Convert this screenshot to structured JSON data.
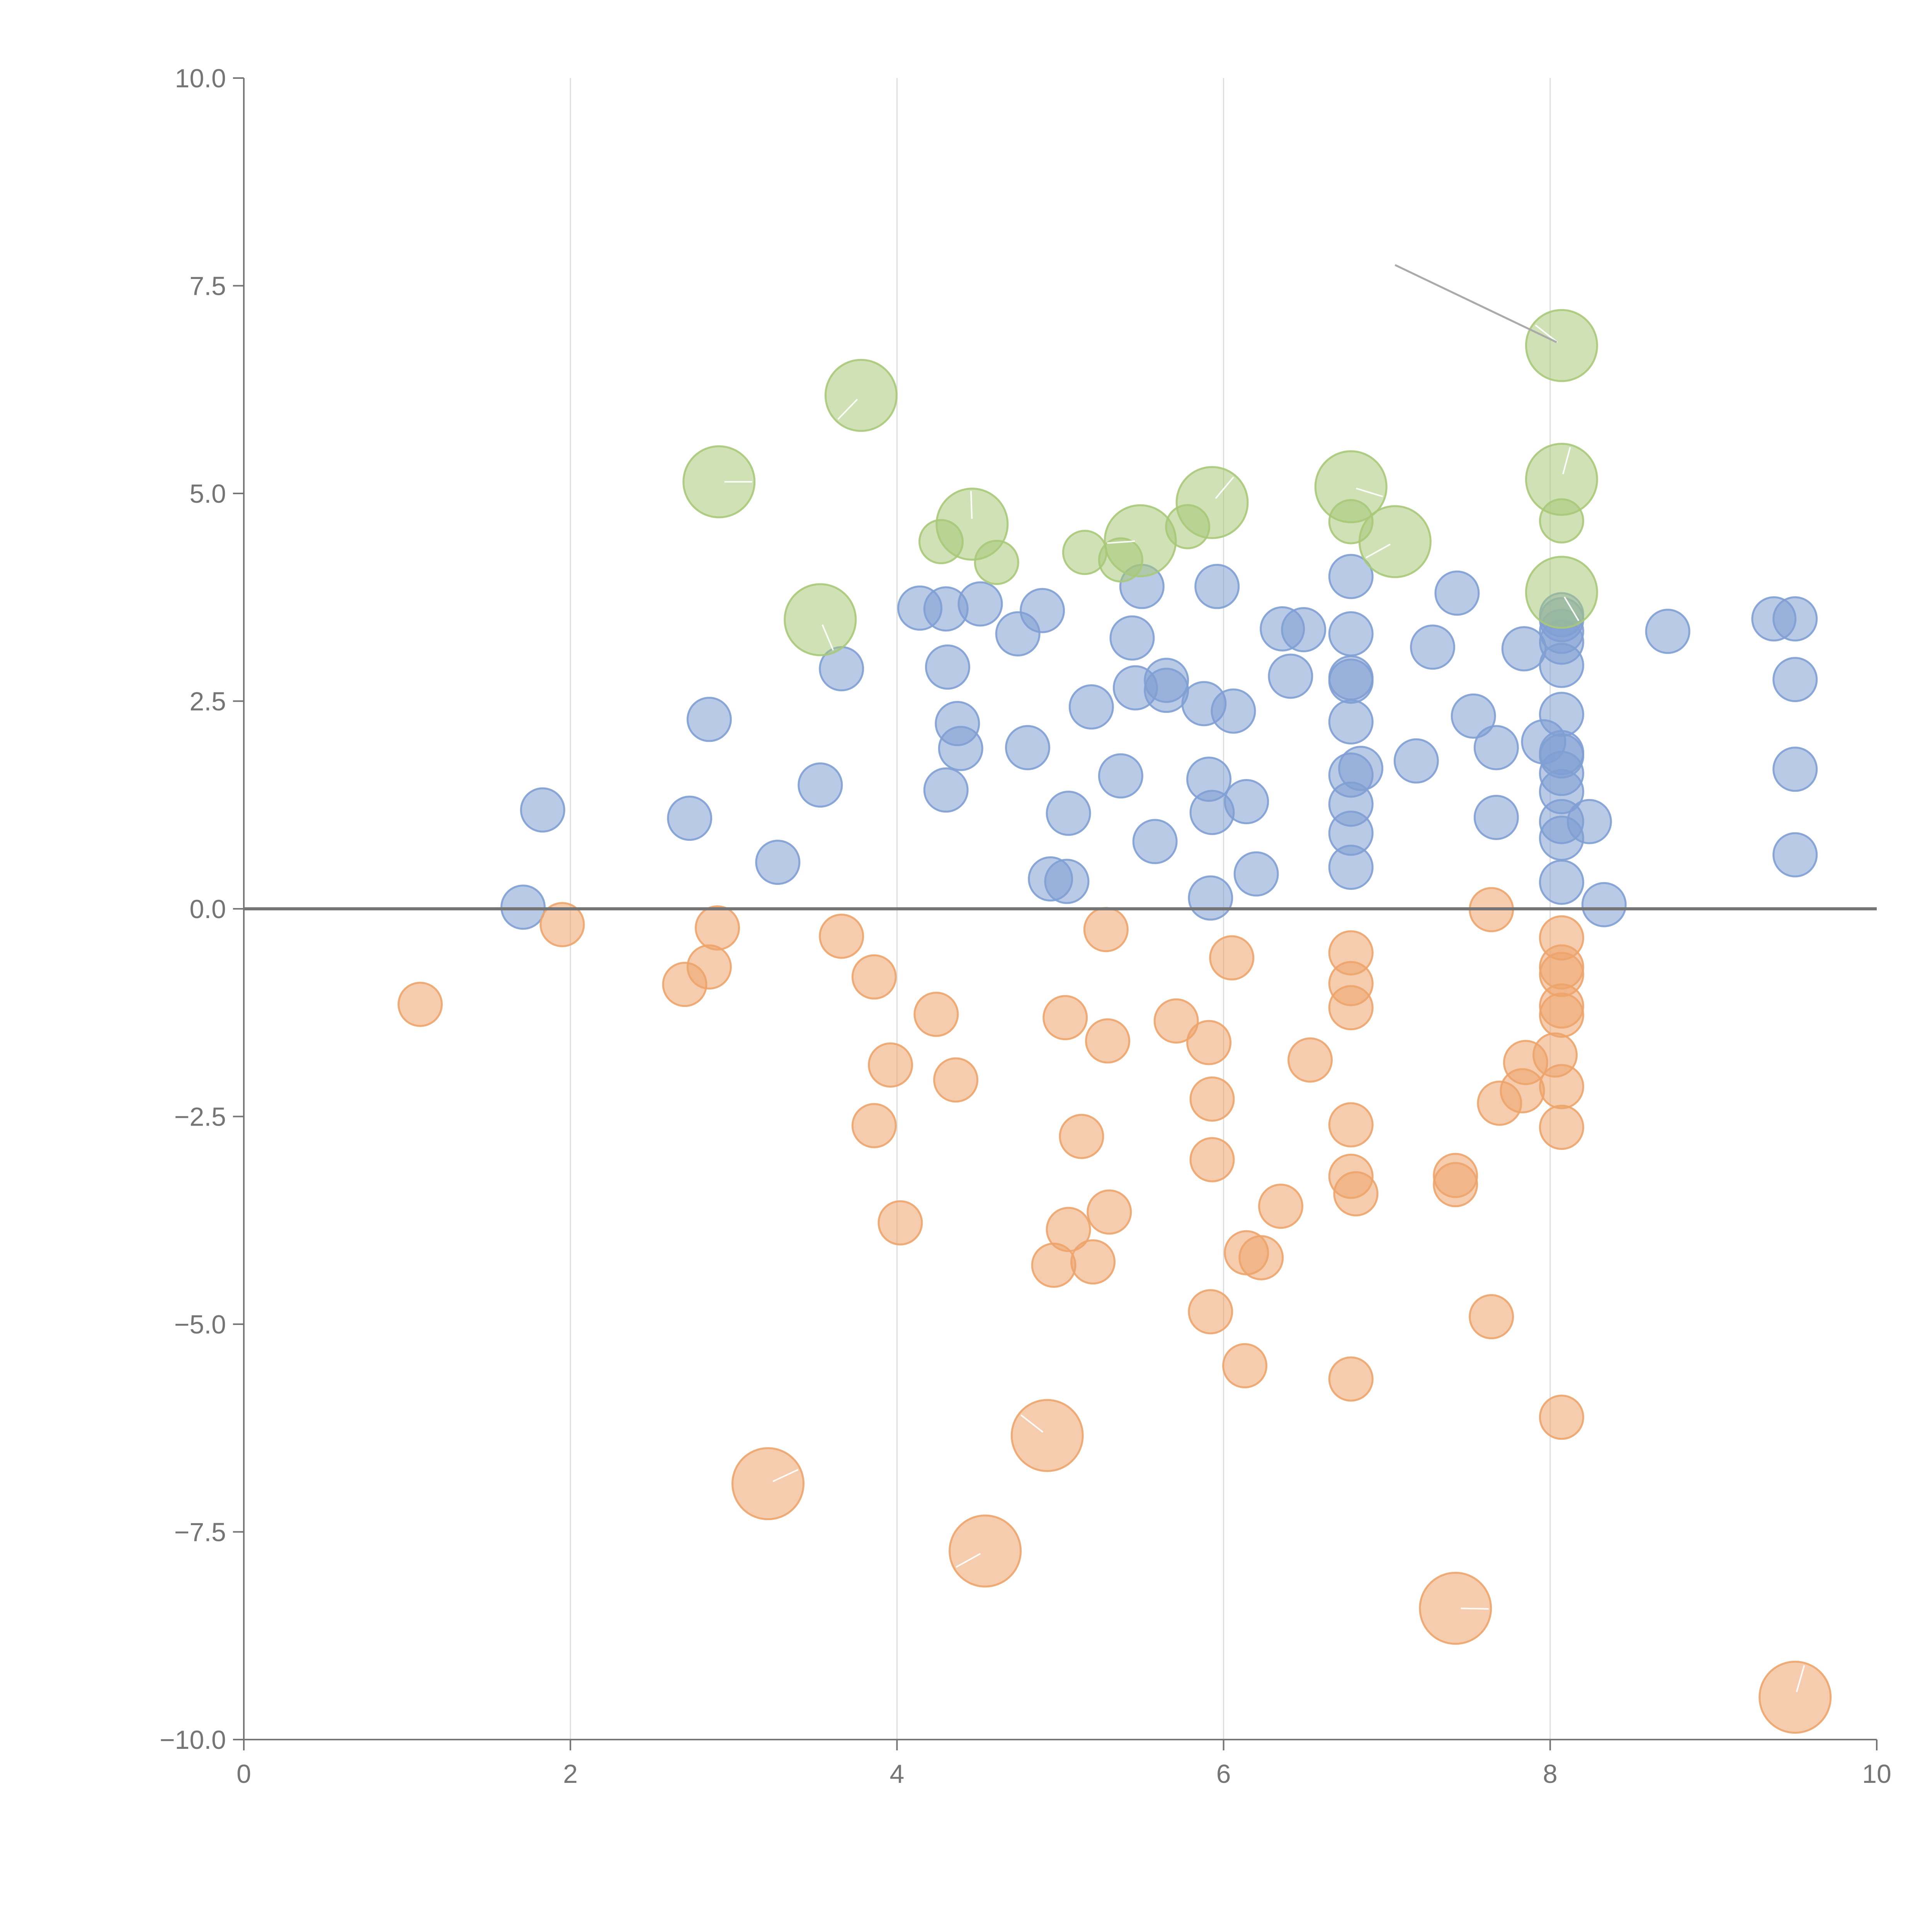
{
  "chart_data": {
    "type": "scatter",
    "title": "",
    "xlabel": "",
    "ylabel": "",
    "xlim": [
      0,
      10
    ],
    "ylim": [
      -10,
      10
    ],
    "grid": "vertical",
    "reference_line_y": 0,
    "x_ticks": [
      "0",
      "2",
      "4",
      "6",
      "8",
      "10"
    ],
    "y_ticks": [
      "10.0",
      "7.5",
      "5.0",
      "2.5",
      "0.0",
      "−2.5",
      "−5.0",
      "−7.5",
      "−10.0"
    ],
    "x_tick_values": [
      0,
      2,
      4,
      6,
      8,
      10
    ],
    "y_tick_values": [
      10,
      7.5,
      5,
      2.5,
      0,
      -2.5,
      -5,
      -7.5,
      -10
    ],
    "colors": {
      "blue": "#7f9fd3",
      "orange": "#eda46b",
      "green": "#a8c979"
    },
    "series": [
      {
        "name": "blue",
        "points": [
          [
            1.71,
            0.02,
            1
          ],
          [
            1.83,
            1.19,
            1
          ],
          [
            2.73,
            1.09,
            1
          ],
          [
            2.85,
            2.28,
            1
          ],
          [
            3.27,
            0.56,
            1
          ],
          [
            3.53,
            1.49,
            1
          ],
          [
            3.66,
            2.89,
            1
          ],
          [
            4.14,
            3.62,
            1
          ],
          [
            4.3,
            1.43,
            1
          ],
          [
            4.31,
            2.91,
            1
          ],
          [
            4.3,
            3.61,
            1
          ],
          [
            4.37,
            2.23,
            1
          ],
          [
            4.39,
            1.93,
            1
          ],
          [
            4.51,
            3.67,
            1
          ],
          [
            4.74,
            3.31,
            1
          ],
          [
            4.8,
            1.94,
            1
          ],
          [
            4.89,
            3.59,
            1
          ],
          [
            4.94,
            0.36,
            1
          ],
          [
            5.04,
            0.33,
            1
          ],
          [
            5.05,
            1.15,
            1
          ],
          [
            5.19,
            2.43,
            1
          ],
          [
            5.37,
            1.6,
            1
          ],
          [
            5.44,
            3.26,
            1
          ],
          [
            5.46,
            2.66,
            1
          ],
          [
            5.5,
            3.88,
            1
          ],
          [
            5.58,
            0.81,
            1
          ],
          [
            5.65,
            2.75,
            1
          ],
          [
            5.65,
            2.63,
            1
          ],
          [
            5.88,
            2.47,
            1
          ],
          [
            5.91,
            1.56,
            1
          ],
          [
            5.93,
            1.16,
            1
          ],
          [
            5.92,
            0.13,
            1
          ],
          [
            5.96,
            3.88,
            1
          ],
          [
            6.06,
            2.38,
            1
          ],
          [
            6.14,
            1.29,
            1
          ],
          [
            6.2,
            0.42,
            1
          ],
          [
            6.36,
            3.37,
            1
          ],
          [
            6.41,
            2.8,
            1
          ],
          [
            6.49,
            3.36,
            1
          ],
          [
            6.78,
            4.0,
            1
          ],
          [
            6.78,
            3.31,
            1
          ],
          [
            6.78,
            2.78,
            1
          ],
          [
            6.78,
            2.74,
            1
          ],
          [
            6.78,
            2.25,
            1
          ],
          [
            6.78,
            1.61,
            1
          ],
          [
            6.78,
            1.26,
            1
          ],
          [
            6.78,
            0.91,
            1
          ],
          [
            6.78,
            0.5,
            1
          ],
          [
            6.84,
            1.69,
            1
          ],
          [
            7.18,
            1.78,
            1
          ],
          [
            7.28,
            3.15,
            1
          ],
          [
            7.43,
            3.8,
            1
          ],
          [
            7.53,
            2.32,
            1
          ],
          [
            7.67,
            1.94,
            1
          ],
          [
            7.67,
            1.1,
            1
          ],
          [
            7.84,
            3.13,
            1
          ],
          [
            7.96,
            2.01,
            1
          ],
          [
            8.07,
            3.54,
            1
          ],
          [
            8.07,
            3.48,
            1
          ],
          [
            8.07,
            3.34,
            1
          ],
          [
            8.07,
            3.21,
            1
          ],
          [
            8.07,
            2.93,
            1
          ],
          [
            8.07,
            2.34,
            1
          ],
          [
            8.07,
            1.88,
            1
          ],
          [
            8.07,
            1.84,
            1
          ],
          [
            8.07,
            1.63,
            1
          ],
          [
            8.07,
            1.41,
            1
          ],
          [
            8.07,
            1.05,
            1
          ],
          [
            8.07,
            0.85,
            1
          ],
          [
            8.07,
            0.32,
            1
          ],
          [
            8.24,
            1.05,
            1
          ],
          [
            8.33,
            0.05,
            1
          ],
          [
            8.72,
            3.34,
            1
          ],
          [
            9.37,
            3.49,
            1
          ],
          [
            9.5,
            3.49,
            1
          ],
          [
            9.5,
            2.76,
            1
          ],
          [
            9.5,
            1.68,
            1
          ],
          [
            9.5,
            0.65,
            1
          ]
        ]
      },
      {
        "name": "orange",
        "points": [
          [
            1.08,
            -1.15,
            1
          ],
          [
            1.95,
            -0.19,
            1
          ],
          [
            2.7,
            -0.91,
            1
          ],
          [
            2.85,
            -0.7,
            1
          ],
          [
            2.9,
            -0.23,
            1
          ],
          [
            3.21,
            -6.92,
            2
          ],
          [
            3.66,
            -0.33,
            1
          ],
          [
            3.86,
            -0.82,
            1
          ],
          [
            3.86,
            -2.61,
            1
          ],
          [
            3.96,
            -1.88,
            1
          ],
          [
            4.02,
            -3.78,
            1
          ],
          [
            4.24,
            -1.27,
            1
          ],
          [
            4.36,
            -2.06,
            1
          ],
          [
            4.54,
            -7.73,
            2
          ],
          [
            4.92,
            -6.34,
            2
          ],
          [
            4.96,
            -4.29,
            1
          ],
          [
            5.03,
            -1.31,
            1
          ],
          [
            5.05,
            -3.86,
            1
          ],
          [
            5.13,
            -2.74,
            1
          ],
          [
            5.2,
            -4.25,
            1
          ],
          [
            5.28,
            -0.25,
            1
          ],
          [
            5.29,
            -1.59,
            1
          ],
          [
            5.3,
            -3.65,
            1
          ],
          [
            5.71,
            -1.35,
            1
          ],
          [
            5.91,
            -1.61,
            1
          ],
          [
            5.92,
            -4.85,
            1
          ],
          [
            5.93,
            -3.02,
            1
          ],
          [
            5.93,
            -2.29,
            1
          ],
          [
            6.05,
            -0.59,
            1
          ],
          [
            6.13,
            -5.5,
            1
          ],
          [
            6.14,
            -4.14,
            1
          ],
          [
            6.23,
            -4.2,
            1
          ],
          [
            6.35,
            -3.58,
            1
          ],
          [
            6.53,
            -1.82,
            1
          ],
          [
            6.78,
            -0.53,
            1
          ],
          [
            6.78,
            -0.9,
            1
          ],
          [
            6.78,
            -1.19,
            1
          ],
          [
            6.78,
            -2.6,
            1
          ],
          [
            6.78,
            -3.22,
            1
          ],
          [
            6.78,
            -5.66,
            1
          ],
          [
            6.81,
            -3.43,
            1
          ],
          [
            7.42,
            -3.21,
            1
          ],
          [
            7.42,
            -3.32,
            1
          ],
          [
            7.42,
            -8.42,
            2
          ],
          [
            7.64,
            -0.01,
            1
          ],
          [
            7.64,
            -4.91,
            1
          ],
          [
            7.69,
            -2.34,
            1
          ],
          [
            7.83,
            -2.19,
            1
          ],
          [
            7.85,
            -1.85,
            1
          ],
          [
            8.03,
            -1.76,
            1
          ],
          [
            8.07,
            -0.35,
            1
          ],
          [
            8.07,
            -0.7,
            1
          ],
          [
            8.07,
            -0.79,
            1
          ],
          [
            8.07,
            -1.17,
            1
          ],
          [
            8.07,
            -1.28,
            1
          ],
          [
            8.07,
            -2.14,
            1
          ],
          [
            8.07,
            -2.63,
            1
          ],
          [
            8.07,
            -6.12,
            1
          ],
          [
            9.5,
            -9.49,
            2
          ]
        ]
      },
      {
        "name": "green",
        "points": [
          [
            2.91,
            5.14,
            2
          ],
          [
            3.53,
            3.48,
            2
          ],
          [
            3.78,
            6.18,
            2
          ],
          [
            4.27,
            4.42,
            1
          ],
          [
            4.46,
            4.63,
            2
          ],
          [
            4.61,
            4.17,
            1
          ],
          [
            5.15,
            4.29,
            1
          ],
          [
            5.37,
            4.2,
            1
          ],
          [
            5.49,
            4.43,
            2
          ],
          [
            5.78,
            4.6,
            1
          ],
          [
            5.93,
            4.89,
            2
          ],
          [
            6.78,
            5.08,
            2
          ],
          [
            6.78,
            4.66,
            1
          ],
          [
            7.05,
            4.42,
            2
          ],
          [
            8.07,
            6.78,
            2
          ],
          [
            8.07,
            5.17,
            2
          ],
          [
            8.07,
            4.67,
            1
          ],
          [
            8.07,
            3.81,
            2
          ]
        ]
      }
    ]
  }
}
